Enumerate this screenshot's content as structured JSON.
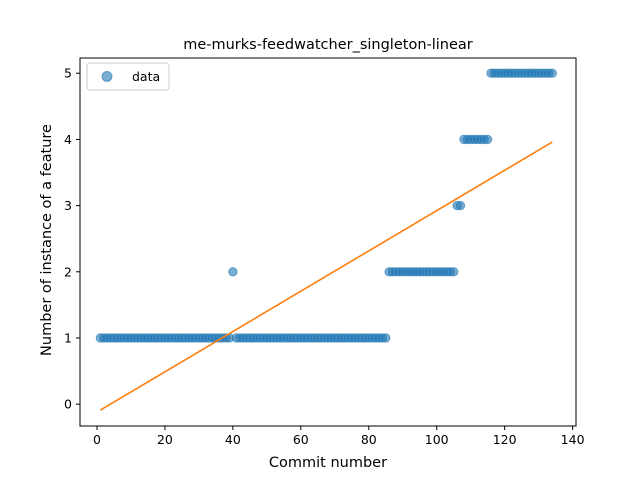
{
  "chart_data": {
    "type": "scatter",
    "title": "me-murks-feedwatcher_singleton-linear",
    "xlabel": "Commit number",
    "ylabel": "Number of instance of a feature",
    "xlim": [
      -5,
      141
    ],
    "ylim": [
      -0.33,
      5.23
    ],
    "xticks": [
      0,
      20,
      40,
      60,
      80,
      100,
      120,
      140
    ],
    "yticks": [
      0,
      1,
      2,
      3,
      4,
      5
    ],
    "legend": {
      "position": "top-left",
      "entries": [
        "data"
      ]
    },
    "colors": {
      "scatter": "#1f77b4",
      "line": "#ff7f0e"
    },
    "series": [
      {
        "name": "data",
        "kind": "scatter",
        "points": [
          [
            1,
            1
          ],
          [
            2,
            1
          ],
          [
            3,
            1
          ],
          [
            4,
            1
          ],
          [
            5,
            1
          ],
          [
            6,
            1
          ],
          [
            7,
            1
          ],
          [
            8,
            1
          ],
          [
            9,
            1
          ],
          [
            10,
            1
          ],
          [
            11,
            1
          ],
          [
            12,
            1
          ],
          [
            13,
            1
          ],
          [
            14,
            1
          ],
          [
            15,
            1
          ],
          [
            16,
            1
          ],
          [
            17,
            1
          ],
          [
            18,
            1
          ],
          [
            19,
            1
          ],
          [
            20,
            1
          ],
          [
            21,
            1
          ],
          [
            22,
            1
          ],
          [
            23,
            1
          ],
          [
            24,
            1
          ],
          [
            25,
            1
          ],
          [
            26,
            1
          ],
          [
            27,
            1
          ],
          [
            28,
            1
          ],
          [
            29,
            1
          ],
          [
            30,
            1
          ],
          [
            31,
            1
          ],
          [
            32,
            1
          ],
          [
            33,
            1
          ],
          [
            34,
            1
          ],
          [
            35,
            1
          ],
          [
            36,
            1
          ],
          [
            37,
            1
          ],
          [
            38,
            1
          ],
          [
            39,
            1
          ],
          [
            40,
            2
          ],
          [
            41,
            1
          ],
          [
            42,
            1
          ],
          [
            43,
            1
          ],
          [
            44,
            1
          ],
          [
            45,
            1
          ],
          [
            46,
            1
          ],
          [
            47,
            1
          ],
          [
            48,
            1
          ],
          [
            49,
            1
          ],
          [
            50,
            1
          ],
          [
            51,
            1
          ],
          [
            52,
            1
          ],
          [
            53,
            1
          ],
          [
            54,
            1
          ],
          [
            55,
            1
          ],
          [
            56,
            1
          ],
          [
            57,
            1
          ],
          [
            58,
            1
          ],
          [
            59,
            1
          ],
          [
            60,
            1
          ],
          [
            61,
            1
          ],
          [
            62,
            1
          ],
          [
            63,
            1
          ],
          [
            64,
            1
          ],
          [
            65,
            1
          ],
          [
            66,
            1
          ],
          [
            67,
            1
          ],
          [
            68,
            1
          ],
          [
            69,
            1
          ],
          [
            70,
            1
          ],
          [
            71,
            1
          ],
          [
            72,
            1
          ],
          [
            73,
            1
          ],
          [
            74,
            1
          ],
          [
            75,
            1
          ],
          [
            76,
            1
          ],
          [
            77,
            1
          ],
          [
            78,
            1
          ],
          [
            79,
            1
          ],
          [
            80,
            1
          ],
          [
            81,
            1
          ],
          [
            82,
            1
          ],
          [
            83,
            1
          ],
          [
            84,
            1
          ],
          [
            85,
            1
          ],
          [
            86,
            2
          ],
          [
            87,
            2
          ],
          [
            88,
            2
          ],
          [
            89,
            2
          ],
          [
            90,
            2
          ],
          [
            91,
            2
          ],
          [
            92,
            2
          ],
          [
            93,
            2
          ],
          [
            94,
            2
          ],
          [
            95,
            2
          ],
          [
            96,
            2
          ],
          [
            97,
            2
          ],
          [
            98,
            2
          ],
          [
            99,
            2
          ],
          [
            100,
            2
          ],
          [
            101,
            2
          ],
          [
            102,
            2
          ],
          [
            103,
            2
          ],
          [
            104,
            2
          ],
          [
            105,
            2
          ],
          [
            106,
            3
          ],
          [
            107,
            3
          ],
          [
            108,
            4
          ],
          [
            109,
            4
          ],
          [
            110,
            4
          ],
          [
            111,
            4
          ],
          [
            112,
            4
          ],
          [
            113,
            4
          ],
          [
            114,
            4
          ],
          [
            115,
            4
          ],
          [
            116,
            5
          ],
          [
            117,
            5
          ],
          [
            118,
            5
          ],
          [
            119,
            5
          ],
          [
            120,
            5
          ],
          [
            121,
            5
          ],
          [
            122,
            5
          ],
          [
            123,
            5
          ],
          [
            124,
            5
          ],
          [
            125,
            5
          ],
          [
            126,
            5
          ],
          [
            127,
            5
          ],
          [
            128,
            5
          ],
          [
            129,
            5
          ],
          [
            130,
            5
          ],
          [
            131,
            5
          ],
          [
            132,
            5
          ],
          [
            133,
            5
          ],
          [
            134,
            5
          ]
        ]
      },
      {
        "name": "",
        "kind": "line",
        "points": [
          [
            1,
            -0.09
          ],
          [
            134,
            3.96
          ]
        ]
      }
    ]
  }
}
